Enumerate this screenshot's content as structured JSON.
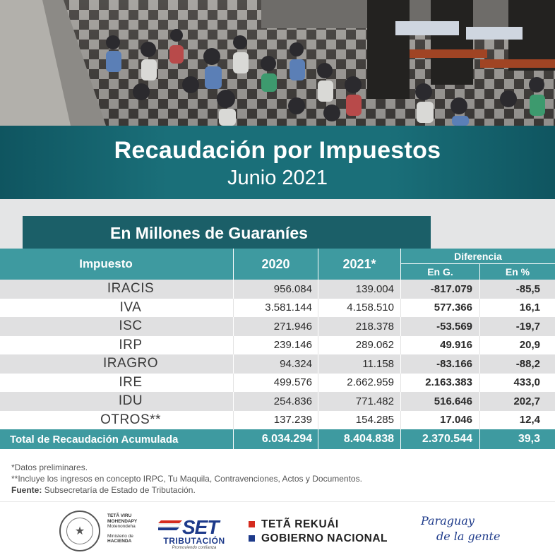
{
  "header": {
    "title": "Recaudación por Impuestos",
    "subtitle": "Junio 2021"
  },
  "units_label": "En Millones de Guaraníes",
  "table": {
    "columns": {
      "impuesto": "Impuesto",
      "year_2020": "2020",
      "year_2021": "2021*",
      "diferencia": "Diferencia",
      "en_g": "En G.",
      "en_pct": "En %"
    },
    "rows": [
      {
        "name": "IRACIS",
        "v2020": "956.084",
        "v2021": "139.004",
        "dif_g": "-817.079",
        "dif_pct": "-85,5"
      },
      {
        "name": "IVA",
        "v2020": "3.581.144",
        "v2021": "4.158.510",
        "dif_g": "577.366",
        "dif_pct": "16,1"
      },
      {
        "name": "ISC",
        "v2020": "271.946",
        "v2021": "218.378",
        "dif_g": "-53.569",
        "dif_pct": "-19,7"
      },
      {
        "name": "IRP",
        "v2020": "239.146",
        "v2021": "289.062",
        "dif_g": "49.916",
        "dif_pct": "20,9"
      },
      {
        "name": "IRAGRO",
        "v2020": "94.324",
        "v2021": "11.158",
        "dif_g": "-83.166",
        "dif_pct": "-88,2"
      },
      {
        "name": "IRE",
        "v2020": "499.576",
        "v2021": "2.662.959",
        "dif_g": "2.163.383",
        "dif_pct": "433,0"
      },
      {
        "name": "IDU",
        "v2020": "254.836",
        "v2021": "771.482",
        "dif_g": "516.646",
        "dif_pct": "202,7"
      },
      {
        "name": "OTROS**",
        "v2020": "137.239",
        "v2021": "154.285",
        "dif_g": "17.046",
        "dif_pct": "12,4"
      }
    ],
    "total": {
      "label": "Total de Recaudación Acumulada",
      "v2020": "6.034.294",
      "v2021": "8.404.838",
      "dif_g": "2.370.544",
      "dif_pct": "39,3"
    }
  },
  "notes": {
    "note1": "*Datos preliminares.",
    "note2": "**Incluye los ingresos en concepto IRPC, Tu Maquila, Contravenciones, Actos y Documentos.",
    "source_label": "Fuente:",
    "source_text": "Subsecretaría de Estado de Tributación."
  },
  "footer": {
    "mh_line1": "TETÃ VIRU",
    "mh_line2": "MOHENDAPY",
    "mh_line3": "Motenondeha",
    "mh_line4": "Ministerio de",
    "mh_line5": "HACIENDA",
    "set_word": "SET",
    "set_label": "TRIBUTACIÓN",
    "set_tagline": "Promoviendo confianza",
    "gov_line1": "TETÃ REKUÁI",
    "gov_line2": "GOBIERNO NACIONAL",
    "slogan_line1": "Paraguay",
    "slogan_line2": "de la gente"
  },
  "colors": {
    "teal_dark": "#1b5f68",
    "teal_header": "#3e9aa0",
    "row_grey": "#e0e0e1",
    "flag_red": "#d52b1e",
    "flag_blue": "#1d3a8a"
  }
}
